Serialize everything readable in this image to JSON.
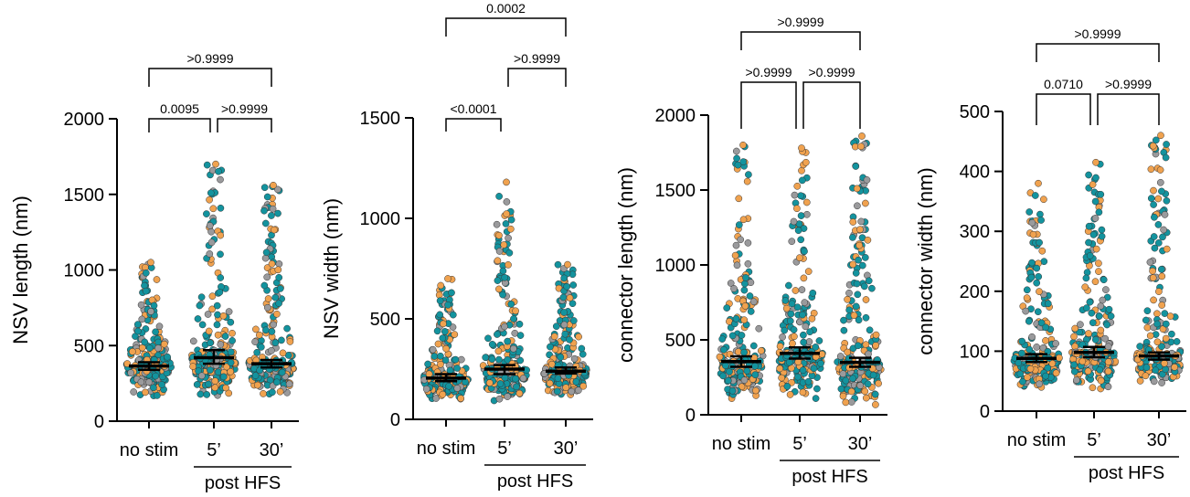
{
  "colors": {
    "teal": "#13939e",
    "orange": "#f0a24f",
    "gray": "#9a9a9c",
    "ink": "#000000"
  },
  "group_label": "post HFS",
  "chart_data": [
    {
      "type": "scatter",
      "ylabel": "NSV length (nm)",
      "ylim": [
        0,
        2000
      ],
      "yticks": [
        0,
        500,
        1000,
        1500,
        2000
      ],
      "categories": [
        "no stim",
        "5’",
        "30’"
      ],
      "medians": [
        365,
        420,
        380
      ],
      "ci": [
        [
          340,
          390
        ],
        [
          380,
          470
        ],
        [
          355,
          405
        ]
      ],
      "spread": [
        {
          "min": 150,
          "max": 1050
        },
        {
          "min": 140,
          "max": 1700
        },
        {
          "min": 150,
          "max": 1560
        }
      ],
      "comparisons": [
        {
          "from": 0,
          "to": 2,
          "label": ">0.9999",
          "level": 2
        },
        {
          "from": 0,
          "to": 1,
          "label": "0.0095",
          "level": 1
        },
        {
          "from": 1,
          "to": 2,
          "label": ">0.9999",
          "level": 1
        }
      ]
    },
    {
      "type": "scatter",
      "ylabel": "NSV width (nm)",
      "ylim": [
        0,
        1500
      ],
      "yticks": [
        0,
        500,
        1000,
        1500
      ],
      "categories": [
        "no stim",
        "5’",
        "30’"
      ],
      "medians": [
        205,
        250,
        240
      ],
      "ci": [
        [
          190,
          225
        ],
        [
          225,
          270
        ],
        [
          228,
          258
        ]
      ],
      "spread": [
        {
          "min": 90,
          "max": 700
        },
        {
          "min": 85,
          "max": 1180
        },
        {
          "min": 100,
          "max": 770
        }
      ],
      "comparisons": [
        {
          "from": 0,
          "to": 2,
          "label": "0.0002",
          "level": 3
        },
        {
          "from": 1,
          "to": 2,
          "label": ">0.9999",
          "level": 2
        },
        {
          "from": 0,
          "to": 1,
          "label": "<0.0001",
          "level": 1
        }
      ]
    },
    {
      "type": "scatter",
      "ylabel": "connector length (nm)",
      "ylim": [
        0,
        2000
      ],
      "yticks": [
        0,
        500,
        1000,
        1500,
        2000
      ],
      "categories": [
        "no stim",
        "5’",
        "30’"
      ],
      "medians": [
        355,
        410,
        350
      ],
      "ci": [
        [
          320,
          390
        ],
        [
          375,
          450
        ],
        [
          320,
          380
        ]
      ],
      "spread": [
        {
          "min": 80,
          "max": 1800
        },
        {
          "min": 100,
          "max": 1780
        },
        {
          "min": 60,
          "max": 1860
        }
      ],
      "comparisons": [
        {
          "from": 0,
          "to": 2,
          "label": ">0.9999",
          "level": 2
        },
        {
          "from": 0,
          "to": 1,
          "label": ">0.9999",
          "level": 1
        },
        {
          "from": 1,
          "to": 2,
          "label": ">0.9999",
          "level": 1
        }
      ]
    },
    {
      "type": "scatter",
      "ylabel": "connector width (nm)",
      "ylim": [
        0,
        500
      ],
      "yticks": [
        0,
        100,
        200,
        300,
        400,
        500
      ],
      "categories": [
        "no stim",
        "5’",
        "30’"
      ],
      "medians": [
        88,
        98,
        92
      ],
      "ci": [
        [
          82,
          95
        ],
        [
          90,
          107
        ],
        [
          86,
          98
        ]
      ],
      "spread": [
        {
          "min": 30,
          "max": 380
        },
        {
          "min": 30,
          "max": 415
        },
        {
          "min": 40,
          "max": 460
        }
      ],
      "comparisons": [
        {
          "from": 0,
          "to": 2,
          "label": ">0.9999",
          "level": 2
        },
        {
          "from": 0,
          "to": 1,
          "label": "0.0710",
          "level": 1
        },
        {
          "from": 1,
          "to": 2,
          "label": ">0.9999",
          "level": 1
        }
      ]
    }
  ]
}
